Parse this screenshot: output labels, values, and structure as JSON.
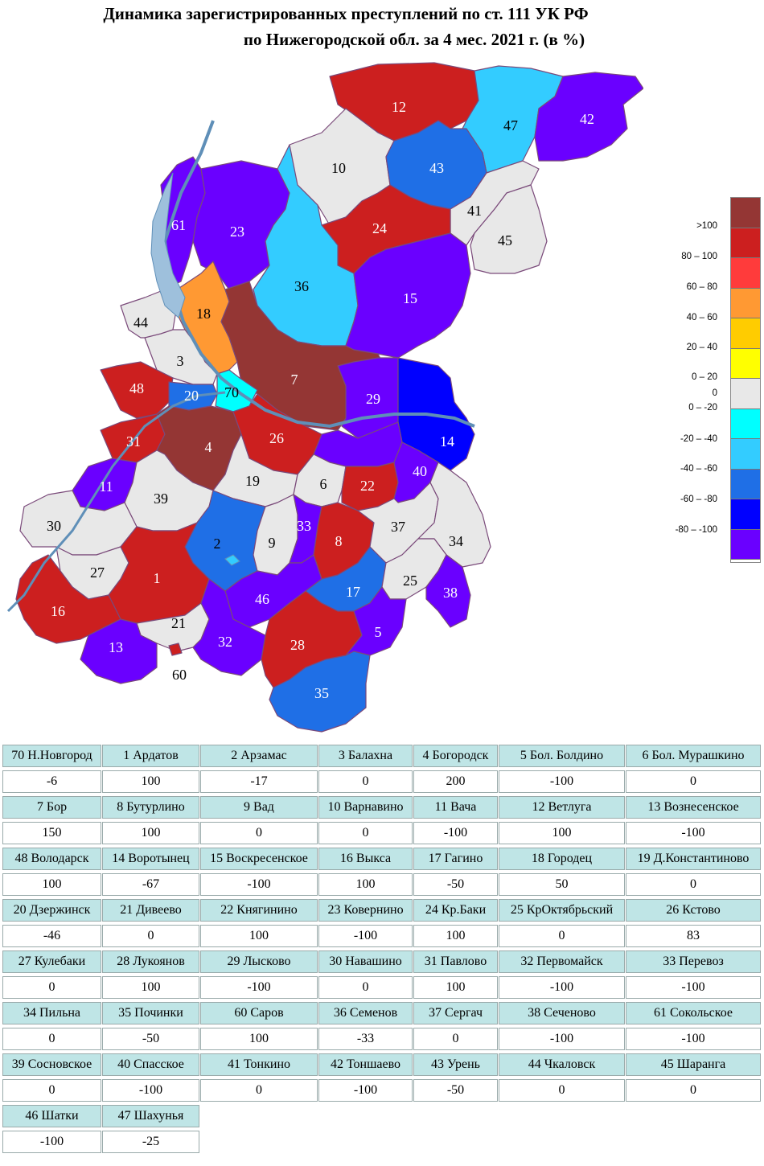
{
  "title": {
    "line1": "Динамика зарегистрированных преступлений по ст. 111 УК РФ",
    "line2": "по Нижегородской обл. за 4 мес. 2021 г. (в %)"
  },
  "legend": [
    {
      "label": ">100",
      "color": "#943634"
    },
    {
      "label": "80 – 100",
      "color": "#cc1f1f"
    },
    {
      "label": "60 – 80",
      "color": "#ff3b3b"
    },
    {
      "label": "40 – 60",
      "color": "#ff9933"
    },
    {
      "label": "20 – 40",
      "color": "#ffcc00"
    },
    {
      "label": "0 – 20",
      "color": "#ffff00"
    },
    {
      "label": "0",
      "color": "#e8e8e8"
    },
    {
      "label": "0 – -20",
      "color": "#00ffff"
    },
    {
      "label": "-20 – -40",
      "color": "#33ccff"
    },
    {
      "label": "-40 – -60",
      "color": "#1f6fe6"
    },
    {
      "label": "-60 – -80",
      "color": "#0000ff"
    },
    {
      "label": "-80 – -100",
      "color": "#6a00ff"
    }
  ],
  "region_labels": [
    "12",
    "47",
    "42",
    "10",
    "43",
    "41",
    "45",
    "24",
    "61",
    "23",
    "36",
    "15",
    "18",
    "44",
    "3",
    "7",
    "48",
    "20",
    "70",
    "29",
    "31",
    "4",
    "26",
    "14",
    "11",
    "39",
    "19",
    "6",
    "22",
    "40",
    "30",
    "2",
    "9",
    "33",
    "8",
    "37",
    "34",
    "27",
    "1",
    "46",
    "17",
    "25",
    "38",
    "16",
    "21",
    "32",
    "28",
    "5",
    "13",
    "60",
    "35"
  ],
  "table": [
    {
      "name": "70 Н.Новгород",
      "value": "-6"
    },
    {
      "name": "1 Ардатов",
      "value": "100"
    },
    {
      "name": "2 Арзамас",
      "value": "-17"
    },
    {
      "name": "3 Балахна",
      "value": "0"
    },
    {
      "name": "4 Богородск",
      "value": "200"
    },
    {
      "name": "5 Бол. Болдино",
      "value": "-100"
    },
    {
      "name": "6 Бол. Мурашкино",
      "value": "0"
    },
    {
      "name": "7 Бор",
      "value": "150"
    },
    {
      "name": "8 Бутурлино",
      "value": "100"
    },
    {
      "name": "9 Вад",
      "value": "0"
    },
    {
      "name": "10 Варнавино",
      "value": "0"
    },
    {
      "name": "11 Вача",
      "value": "-100"
    },
    {
      "name": "12 Ветлуга",
      "value": "100"
    },
    {
      "name": "13 Вознесенское",
      "value": "-100"
    },
    {
      "name": "48 Володарск",
      "value": "100"
    },
    {
      "name": "14 Воротынец",
      "value": "-67"
    },
    {
      "name": "15 Воскресенское",
      "value": "-100"
    },
    {
      "name": "16 Выкса",
      "value": "100"
    },
    {
      "name": "17 Гагино",
      "value": "-50"
    },
    {
      "name": "18 Городец",
      "value": "50"
    },
    {
      "name": "19 Д.Константиново",
      "value": "0"
    },
    {
      "name": "20 Дзержинск",
      "value": "-46"
    },
    {
      "name": "21 Дивеево",
      "value": "0"
    },
    {
      "name": "22 Княгинино",
      "value": "100"
    },
    {
      "name": "23 Ковернино",
      "value": "-100"
    },
    {
      "name": "24 Кр.Баки",
      "value": "100"
    },
    {
      "name": "25 КрОктябрьский",
      "value": "0"
    },
    {
      "name": "26 Кстово",
      "value": "83"
    },
    {
      "name": "27 Кулебаки",
      "value": "0"
    },
    {
      "name": "28 Лукоянов",
      "value": "100"
    },
    {
      "name": "29 Лысково",
      "value": "-100"
    },
    {
      "name": "30 Навашино",
      "value": "0"
    },
    {
      "name": "31 Павлово",
      "value": "100"
    },
    {
      "name": "32 Первомайск",
      "value": "-100"
    },
    {
      "name": "33 Перевоз",
      "value": "-100"
    },
    {
      "name": "34 Пильна",
      "value": "0"
    },
    {
      "name": "35 Починки",
      "value": "-50"
    },
    {
      "name": "60 Саров",
      "value": "100"
    },
    {
      "name": "36 Семенов",
      "value": "-33"
    },
    {
      "name": "37 Сергач",
      "value": "0"
    },
    {
      "name": "38 Сеченово",
      "value": "-100"
    },
    {
      "name": "61 Сокольское",
      "value": "-100"
    },
    {
      "name": "39 Сосновское",
      "value": "0"
    },
    {
      "name": "40 Спасское",
      "value": "-100"
    },
    {
      "name": "41 Тонкино",
      "value": "0"
    },
    {
      "name": "42 Тоншаево",
      "value": "-100"
    },
    {
      "name": "43 Урень",
      "value": "-50"
    },
    {
      "name": "44 Чкаловск",
      "value": "0"
    },
    {
      "name": "45 Шаранга",
      "value": "0"
    },
    {
      "name": "46 Шатки",
      "value": "-100"
    },
    {
      "name": "47 Шахунья",
      "value": "-25"
    }
  ]
}
